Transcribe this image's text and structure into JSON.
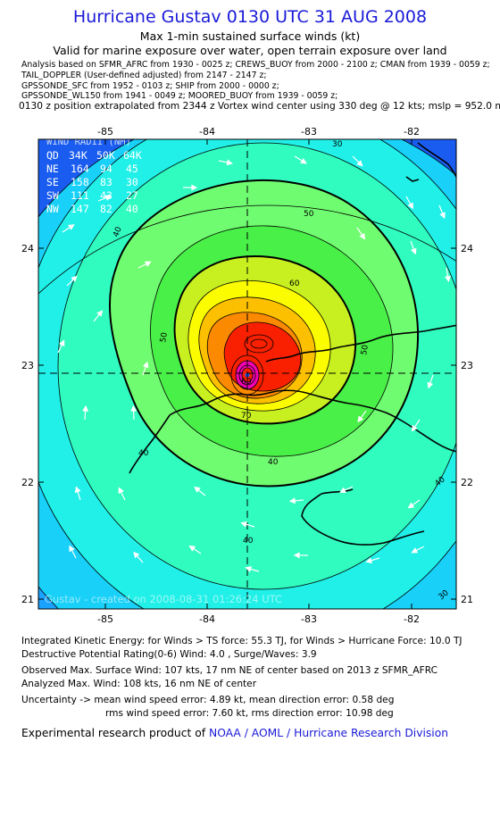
{
  "header": {
    "title": "Hurricane Gustav 0130 UTC 31 AUG 2008",
    "subtitle1": "Max 1-min sustained surface winds (kt)",
    "subtitle2": "Valid for marine exposure over water, open terrain exposure over land"
  },
  "sources": [
    "Analysis based on   SFMR_AFRC from 1930 - 0025 z;  CREWS_BUOY from 2000 - 2100 z;  CMAN from 1939 - 0059 z;",
    "TAIL_DOPPLER (User-defined adjusted) from 2147 - 2147 z;",
    "GPSSONDE_SFC from 1952 - 0103 z;  SHIP from 2000 - 0000 z;",
    "GPSSONDE_WL150 from 1941 - 0049 z;  MOORED_BUOY from 1939 - 0059 z;"
  ],
  "position_note": "0130 z position extrapolated from 2344 z Vortex wind center using 330 deg @ 12 kts; mslp = 952.0 mb",
  "map": {
    "x_ticks": [
      "-85",
      "-84",
      "-83",
      "-82"
    ],
    "y_ticks": [
      "24",
      "23",
      "22",
      "21"
    ],
    "contour_labels": [
      "30",
      "40",
      "50",
      "60",
      "70",
      "40",
      "50",
      "60",
      "50",
      "40",
      "40",
      "40",
      "30"
    ],
    "wind_radii": {
      "title": "WIND RADII (NM)",
      "header": [
        "QD",
        "34K",
        "50K",
        "64K"
      ],
      "rows": [
        [
          "NE",
          "164",
          "94",
          "45"
        ],
        [
          "SE",
          "158",
          "83",
          "30"
        ],
        [
          "SW",
          "111",
          "43",
          "27"
        ],
        [
          "NW",
          "147",
          "82",
          "40"
        ]
      ]
    },
    "watermark": "Gustav - created on 2008-08-31 01:26:24 UTC",
    "colors": {
      "deep_blue": "#1a5cf0",
      "blue": "#1aa2ff",
      "light_blue": "#18d0f8",
      "cyan": "#20f0e8",
      "aqua": "#30fcc0",
      "green_light": "#70fc70",
      "green": "#48f048",
      "yellow_green": "#c8f020",
      "yellow": "#fcfc00",
      "orange_light": "#fcc000",
      "orange": "#fc8a00",
      "red": "#f82000",
      "magenta": "#f000b0"
    }
  },
  "stats": {
    "line1": "Integrated Kinetic Energy:  for Winds > TS force: 55.3 TJ,  for Winds > Hurricane Force: 10.0 TJ",
    "line2": "Destructive Potential Rating(0-6)   Wind: 4.0 , Surge/Waves: 3.9",
    "line3": "Observed Max. Surface Wind: 107 kts, 17 nm NE of center based on 2013 z SFMR_AFRC",
    "line4": "Analyzed Max. Wind: 108 kts, 16 nm NE of center",
    "line5": "Uncertainty -> mean wind speed error: 4.89 kt,   mean direction error: 0.58 deg",
    "line6": "rms wind speed error: 7.60 kt,   rms direction error: 10.98 deg"
  },
  "credit": {
    "prefix": "Experimental research product of",
    "org": "NOAA / AOML / Hurricane Research Division"
  }
}
